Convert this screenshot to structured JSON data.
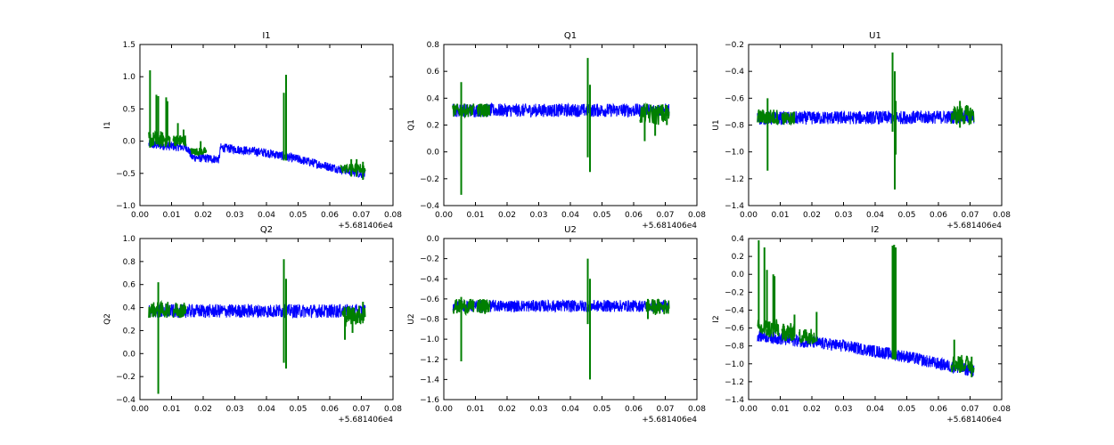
{
  "figure": {
    "background": "#ffffff"
  },
  "colors": {
    "series_a": "#0000ff",
    "series_b": "#007f00",
    "axes": "#000000"
  },
  "chart_data": [
    {
      "type": "line",
      "title": "I1",
      "xlabel": "",
      "ylabel": "I1",
      "xlim": [
        0.0,
        0.08
      ],
      "ylim": [
        -1.0,
        1.5
      ],
      "xticks": [
        "0.00",
        "0.01",
        "0.02",
        "0.03",
        "0.04",
        "0.05",
        "0.06",
        "0.07",
        "0.08"
      ],
      "yticks": [
        "−1.0",
        "−0.5",
        "0.0",
        "0.5",
        "1.0",
        "1.5"
      ],
      "yticks_values": [
        -1.0,
        -0.5,
        0.0,
        0.5,
        1.0,
        1.5
      ],
      "offset_label": "+5.681406e4",
      "series": [
        {
          "color": "#0000ff",
          "x_range": [
            0.0028,
            0.0712
          ],
          "trend": [
            [
              0.0028,
              -0.05
            ],
            [
              0.015,
              -0.1
            ],
            [
              0.0165,
              -0.25
            ],
            [
              0.025,
              -0.28
            ],
            [
              0.0255,
              -0.1
            ],
            [
              0.04,
              -0.18
            ],
            [
              0.05,
              -0.28
            ],
            [
              0.06,
              -0.4
            ],
            [
              0.0712,
              -0.52
            ]
          ],
          "noise": 0.07
        },
        {
          "color": "#007f00",
          "segments": [
            [
              0.0028,
              0.0095,
              -0.1,
              0.15
            ],
            [
              0.0105,
              0.0145,
              -0.08,
              0.1
            ],
            [
              0.016,
              0.021,
              -0.22,
              -0.1
            ],
            [
              0.0635,
              0.0712,
              -0.5,
              -0.35
            ]
          ],
          "spikes": [
            [
              0.0032,
              -0.1,
              1.1
            ],
            [
              0.0052,
              -0.05,
              0.72
            ],
            [
              0.0058,
              -0.05,
              0.7
            ],
            [
              0.0083,
              0.0,
              0.68
            ],
            [
              0.0087,
              0.0,
              0.62
            ],
            [
              0.012,
              -0.05,
              0.28
            ],
            [
              0.0138,
              -0.05,
              0.18
            ],
            [
              0.0192,
              -0.2,
              0.0
            ],
            [
              0.0455,
              -0.3,
              0.75
            ],
            [
              0.0462,
              -0.3,
              1.03
            ],
            [
              0.0668,
              -0.55,
              -0.28
            ],
            [
              0.0685,
              -0.55,
              -0.28
            ],
            [
              0.0705,
              -0.6,
              -0.32
            ]
          ]
        }
      ]
    },
    {
      "type": "line",
      "title": "Q1",
      "xlabel": "",
      "ylabel": "Q1",
      "xlim": [
        0.0,
        0.08
      ],
      "ylim": [
        -0.4,
        0.8
      ],
      "xticks": [
        "0.00",
        "0.01",
        "0.02",
        "0.03",
        "0.04",
        "0.05",
        "0.06",
        "0.07",
        "0.08"
      ],
      "yticks": [
        "−0.4",
        "−0.2",
        "0.0",
        "0.2",
        "0.4",
        "0.6",
        "0.8"
      ],
      "yticks_values": [
        -0.4,
        -0.2,
        0.0,
        0.2,
        0.4,
        0.6,
        0.8
      ],
      "offset_label": "+5.681406e4",
      "series": [
        {
          "color": "#0000ff",
          "x_range": [
            0.0028,
            0.0712
          ],
          "trend": [
            [
              0.0028,
              0.31
            ],
            [
              0.0712,
              0.31
            ]
          ],
          "noise": 0.05
        },
        {
          "color": "#007f00",
          "segments": [
            [
              0.0028,
              0.0095,
              0.26,
              0.36
            ],
            [
              0.0105,
              0.0145,
              0.26,
              0.36
            ],
            [
              0.062,
              0.0712,
              0.2,
              0.36
            ]
          ],
          "spikes": [
            [
              0.0055,
              -0.32,
              0.52
            ],
            [
              0.0455,
              -0.04,
              0.7
            ],
            [
              0.0462,
              -0.15,
              0.5
            ],
            [
              0.0635,
              0.08,
              0.3
            ],
            [
              0.0668,
              0.12,
              0.3
            ],
            [
              0.0705,
              0.2,
              0.35
            ]
          ]
        }
      ]
    },
    {
      "type": "line",
      "title": "U1",
      "xlabel": "",
      "ylabel": "U1",
      "xlim": [
        0.0,
        0.08
      ],
      "ylim": [
        -1.4,
        -0.2
      ],
      "xticks": [
        "0.00",
        "0.01",
        "0.02",
        "0.03",
        "0.04",
        "0.05",
        "0.06",
        "0.07",
        "0.08"
      ],
      "yticks": [
        "−1.4",
        "−1.2",
        "−1.0",
        "−0.8",
        "−0.6",
        "−0.4",
        "−0.2"
      ],
      "yticks_values": [
        -1.4,
        -1.2,
        -1.0,
        -0.8,
        -0.6,
        -0.4,
        -0.2
      ],
      "offset_label": "+5.681406e4",
      "series": [
        {
          "color": "#0000ff",
          "x_range": [
            0.0028,
            0.0712
          ],
          "trend": [
            [
              0.0028,
              -0.75
            ],
            [
              0.0712,
              -0.74
            ]
          ],
          "noise": 0.05
        },
        {
          "color": "#007f00",
          "segments": [
            [
              0.0028,
              0.0095,
              -0.8,
              -0.68
            ],
            [
              0.0105,
              0.0145,
              -0.8,
              -0.7
            ],
            [
              0.064,
              0.0712,
              -0.8,
              -0.65
            ]
          ],
          "spikes": [
            [
              0.006,
              -1.14,
              -0.6
            ],
            [
              0.0455,
              -0.85,
              -0.26
            ],
            [
              0.0462,
              -1.28,
              -0.4
            ],
            [
              0.0465,
              -1.02,
              -0.62
            ],
            [
              0.0668,
              -0.82,
              -0.62
            ]
          ]
        }
      ]
    },
    {
      "type": "line",
      "title": "Q2",
      "xlabel": "",
      "ylabel": "Q2",
      "xlim": [
        0.0,
        0.08
      ],
      "ylim": [
        -0.4,
        1.0
      ],
      "xticks": [
        "0.00",
        "0.01",
        "0.02",
        "0.03",
        "0.04",
        "0.05",
        "0.06",
        "0.07",
        "0.08"
      ],
      "yticks": [
        "−0.4",
        "−0.2",
        "0.0",
        "0.2",
        "0.4",
        "0.6",
        "0.8",
        "1.0"
      ],
      "yticks_values": [
        -0.4,
        -0.2,
        0.0,
        0.2,
        0.4,
        0.6,
        0.8,
        1.0
      ],
      "offset_label": "+5.681406e4",
      "series": [
        {
          "color": "#0000ff",
          "x_range": [
            0.0028,
            0.0712
          ],
          "trend": [
            [
              0.0028,
              0.37
            ],
            [
              0.0712,
              0.37
            ]
          ],
          "noise": 0.06
        },
        {
          "color": "#007f00",
          "segments": [
            [
              0.0028,
              0.0095,
              0.31,
              0.45
            ],
            [
              0.0105,
              0.0145,
              0.31,
              0.45
            ],
            [
              0.064,
              0.0712,
              0.25,
              0.42
            ]
          ],
          "spikes": [
            [
              0.0058,
              -0.35,
              0.62
            ],
            [
              0.0455,
              -0.08,
              0.82
            ],
            [
              0.0462,
              -0.13,
              0.65
            ],
            [
              0.0648,
              0.12,
              0.4
            ],
            [
              0.0672,
              0.18,
              0.4
            ],
            [
              0.0705,
              0.3,
              0.45
            ]
          ]
        }
      ]
    },
    {
      "type": "line",
      "title": "U2",
      "xlabel": "",
      "ylabel": "U2",
      "xlim": [
        0.0,
        0.08
      ],
      "ylim": [
        -1.6,
        0.0
      ],
      "xticks": [
        "0.00",
        "0.01",
        "0.02",
        "0.03",
        "0.04",
        "0.05",
        "0.06",
        "0.07",
        "0.08"
      ],
      "yticks": [
        "−1.6",
        "−1.4",
        "−1.2",
        "−1.0",
        "−0.8",
        "−0.6",
        "−0.4",
        "−0.2",
        "0.0"
      ],
      "yticks_values": [
        -1.6,
        -1.4,
        -1.2,
        -1.0,
        -0.8,
        -0.6,
        -0.4,
        -0.2,
        0.0
      ],
      "offset_label": "+5.681406e4",
      "series": [
        {
          "color": "#0000ff",
          "x_range": [
            0.0028,
            0.0712
          ],
          "trend": [
            [
              0.0028,
              -0.67
            ],
            [
              0.0712,
              -0.67
            ]
          ],
          "noise": 0.06
        },
        {
          "color": "#007f00",
          "segments": [
            [
              0.0028,
              0.0095,
              -0.75,
              -0.6
            ],
            [
              0.0105,
              0.0145,
              -0.75,
              -0.6
            ],
            [
              0.064,
              0.0712,
              -0.76,
              -0.6
            ]
          ],
          "spikes": [
            [
              0.0055,
              -1.22,
              -0.58
            ],
            [
              0.0455,
              -0.85,
              -0.2
            ],
            [
              0.0462,
              -1.4,
              -0.4
            ],
            [
              0.0645,
              -0.8,
              -0.6
            ]
          ]
        }
      ]
    },
    {
      "type": "line",
      "title": "I2",
      "xlabel": "",
      "ylabel": "I2",
      "xlim": [
        0.0,
        0.08
      ],
      "ylim": [
        -1.4,
        0.4
      ],
      "xticks": [
        "0.00",
        "0.01",
        "0.02",
        "0.03",
        "0.04",
        "0.05",
        "0.06",
        "0.07",
        "0.08"
      ],
      "yticks": [
        "−1.4",
        "−1.2",
        "−1.0",
        "−0.8",
        "−0.6",
        "−0.4",
        "−0.2",
        "0.0",
        "0.2",
        "0.4"
      ],
      "yticks_values": [
        -1.4,
        -1.2,
        -1.0,
        -0.8,
        -0.6,
        -0.4,
        -0.2,
        0.0,
        0.2,
        0.4
      ],
      "offset_label": "+5.681406e4",
      "series": [
        {
          "color": "#0000ff",
          "x_range": [
            0.0028,
            0.0712
          ],
          "trend": [
            [
              0.0028,
              -0.68
            ],
            [
              0.01,
              -0.72
            ],
            [
              0.02,
              -0.76
            ],
            [
              0.03,
              -0.8
            ],
            [
              0.04,
              -0.86
            ],
            [
              0.05,
              -0.92
            ],
            [
              0.06,
              -1.0
            ],
            [
              0.0712,
              -1.08
            ]
          ],
          "noise": 0.07
        },
        {
          "color": "#007f00",
          "segments": [
            [
              0.0028,
              0.0095,
              -0.72,
              -0.5
            ],
            [
              0.0105,
              0.0145,
              -0.75,
              -0.55
            ],
            [
              0.016,
              0.021,
              -0.78,
              -0.6
            ],
            [
              0.064,
              0.0712,
              -1.1,
              -0.9
            ]
          ],
          "spikes": [
            [
              0.0032,
              -0.6,
              0.38
            ],
            [
              0.005,
              -0.6,
              0.3
            ],
            [
              0.0058,
              -0.6,
              0.05
            ],
            [
              0.0078,
              -0.6,
              0.0
            ],
            [
              0.0082,
              -0.6,
              -0.02
            ],
            [
              0.0145,
              -0.7,
              -0.45
            ],
            [
              0.0215,
              -0.75,
              -0.42
            ],
            [
              0.0455,
              -0.95,
              0.32
            ],
            [
              0.046,
              -0.95,
              0.33
            ],
            [
              0.0465,
              -0.95,
              0.3
            ],
            [
              0.065,
              -1.0,
              -0.73
            ],
            [
              0.0668,
              -1.1,
              -0.92
            ],
            [
              0.0705,
              -1.15,
              -0.92
            ]
          ]
        }
      ]
    }
  ]
}
